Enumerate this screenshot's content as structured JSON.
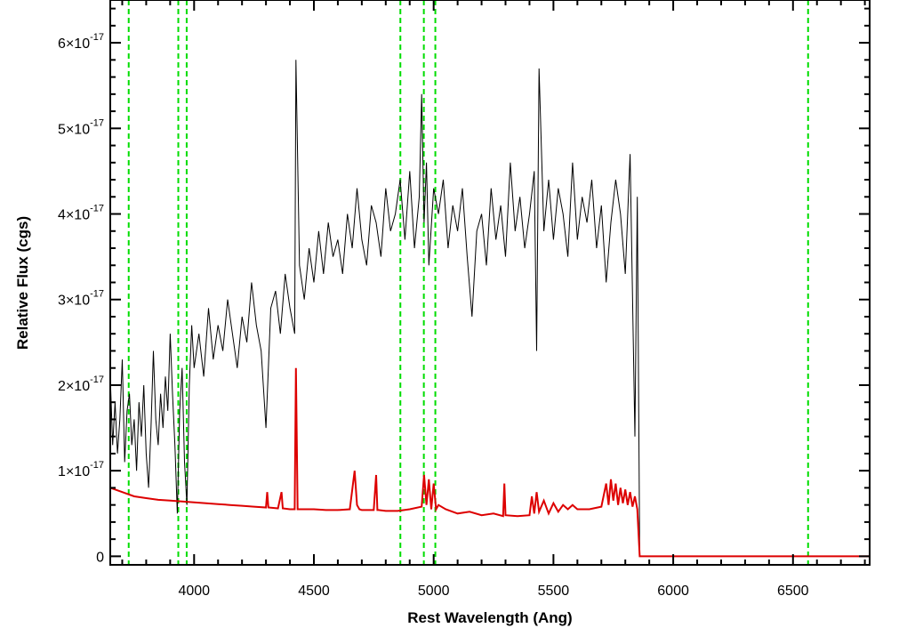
{
  "chart_data": {
    "type": "line",
    "xlabel": "Rest Wavelength (Ang)",
    "ylabel": "Relative Flux (cgs)",
    "xlim": [
      3650,
      6820
    ],
    "ylim": [
      -1e-18,
      6.5e-17
    ],
    "x_ticks": [
      {
        "value": 4000,
        "label": "4000"
      },
      {
        "value": 4500,
        "label": "4500"
      },
      {
        "value": 5000,
        "label": "5000"
      },
      {
        "value": 5500,
        "label": "5500"
      },
      {
        "value": 6000,
        "label": "6000"
      },
      {
        "value": 6500,
        "label": "6500"
      }
    ],
    "y_ticks": [
      {
        "value": 0,
        "label": "0",
        "mantissa": "",
        "exponent": ""
      },
      {
        "value": 1e-17,
        "label": "1×10-17",
        "mantissa": "1×10",
        "exponent": "-17"
      },
      {
        "value": 2e-17,
        "label": "2×10-17",
        "mantissa": "2×10",
        "exponent": "-17"
      },
      {
        "value": 3e-17,
        "label": "3×10-17",
        "mantissa": "3×10",
        "exponent": "-17"
      },
      {
        "value": 4e-17,
        "label": "4×10-17",
        "mantissa": "4×10",
        "exponent": "-17"
      },
      {
        "value": 5e-17,
        "label": "5×10-17",
        "mantissa": "5×10",
        "exponent": "-17"
      },
      {
        "value": 6e-17,
        "label": "6×10-17",
        "mantissa": "6×10",
        "exponent": "-17"
      }
    ],
    "reference_lines_x": [
      3727,
      3934,
      3969,
      4861,
      4959,
      5007,
      6563
    ],
    "reference_line_color": "#00dd00",
    "series": [
      {
        "color": "#000000",
        "x": [
          3650,
          3660,
          3670,
          3680,
          3690,
          3700,
          3710,
          3720,
          3730,
          3740,
          3750,
          3760,
          3770,
          3780,
          3790,
          3800,
          3810,
          3820,
          3830,
          3840,
          3850,
          3860,
          3870,
          3880,
          3890,
          3900,
          3910,
          3920,
          3930,
          3940,
          3950,
          3960,
          3970,
          3980,
          3990,
          4000,
          4020,
          4040,
          4060,
          4080,
          4100,
          4120,
          4140,
          4160,
          4180,
          4200,
          4220,
          4240,
          4260,
          4280,
          4300,
          4320,
          4340,
          4360,
          4380,
          4400,
          4420,
          4425,
          4440,
          4460,
          4480,
          4500,
          4520,
          4540,
          4560,
          4580,
          4600,
          4620,
          4640,
          4660,
          4680,
          4700,
          4720,
          4740,
          4760,
          4780,
          4800,
          4820,
          4840,
          4860,
          4880,
          4900,
          4920,
          4940,
          4950,
          4960,
          4970,
          4980,
          5000,
          5020,
          5040,
          5060,
          5080,
          5100,
          5120,
          5140,
          5160,
          5180,
          5200,
          5220,
          5240,
          5260,
          5280,
          5300,
          5320,
          5340,
          5360,
          5380,
          5400,
          5420,
          5430,
          5440,
          5460,
          5480,
          5500,
          5520,
          5540,
          5560,
          5580,
          5600,
          5620,
          5640,
          5660,
          5680,
          5700,
          5720,
          5740,
          5760,
          5780,
          5800,
          5820,
          5840,
          5850,
          5860
        ],
        "values": [
          2.1e-17,
          1.3e-17,
          1.8e-17,
          1.2e-17,
          1.6e-17,
          2.3e-17,
          1.1e-17,
          1.7e-17,
          1.9e-17,
          1.3e-17,
          1.6e-17,
          1e-17,
          1.8e-17,
          1.4e-17,
          2e-17,
          1.2e-17,
          8e-18,
          1.5e-17,
          2.4e-17,
          1.6e-17,
          1.3e-17,
          1.9e-17,
          1.5e-17,
          2.1e-17,
          1.7e-17,
          2.6e-17,
          1.9e-17,
          1.3e-17,
          5e-18,
          1.7e-17,
          2.2e-17,
          1.1e-17,
          6e-18,
          2e-17,
          2.7e-17,
          2.2e-17,
          2.6e-17,
          2.1e-17,
          2.9e-17,
          2.3e-17,
          2.7e-17,
          2.4e-17,
          3e-17,
          2.6e-17,
          2.2e-17,
          2.8e-17,
          2.5e-17,
          3.2e-17,
          2.7e-17,
          2.4e-17,
          1.5e-17,
          2.9e-17,
          3.1e-17,
          2.6e-17,
          3.3e-17,
          2.9e-17,
          2.6e-17,
          5.8e-17,
          3.4e-17,
          3e-17,
          3.6e-17,
          3.2e-17,
          3.8e-17,
          3.3e-17,
          3.9e-17,
          3.5e-17,
          3.7e-17,
          3.3e-17,
          4e-17,
          3.6e-17,
          4.3e-17,
          3.7e-17,
          3.4e-17,
          4.1e-17,
          3.9e-17,
          3.5e-17,
          4.3e-17,
          3.8e-17,
          4e-17,
          4.4e-17,
          3.7e-17,
          4.5e-17,
          3.6e-17,
          4.2e-17,
          5.4e-17,
          3.9e-17,
          4.6e-17,
          3.4e-17,
          4.3e-17,
          4e-17,
          4.4e-17,
          3.6e-17,
          4.1e-17,
          3.8e-17,
          4.3e-17,
          3.5e-17,
          2.8e-17,
          3.8e-17,
          4e-17,
          3.4e-17,
          4.3e-17,
          3.7e-17,
          4.1e-17,
          3.5e-17,
          4.6e-17,
          3.8e-17,
          4.2e-17,
          3.6e-17,
          4e-17,
          4.5e-17,
          2.4e-17,
          5.7e-17,
          3.8e-17,
          4.4e-17,
          3.7e-17,
          4.3e-17,
          4e-17,
          3.5e-17,
          4.6e-17,
          3.7e-17,
          4.2e-17,
          3.9e-17,
          4.4e-17,
          3.6e-17,
          4.1e-17,
          3.2e-17,
          3.9e-17,
          4.4e-17,
          4e-17,
          3.3e-17,
          4.7e-17,
          1.4e-17,
          4.2e-17,
          0.0
        ]
      },
      {
        "color": "#dd0000",
        "x": [
          3650,
          3700,
          3750,
          3800,
          3850,
          3900,
          3950,
          4000,
          4050,
          4100,
          4150,
          4200,
          4250,
          4300,
          4305,
          4310,
          4350,
          4365,
          4370,
          4400,
          4420,
          4425,
          4432,
          4440,
          4500,
          4550,
          4600,
          4650,
          4670,
          4680,
          4690,
          4700,
          4750,
          4760,
          4765,
          4770,
          4800,
          4850,
          4900,
          4950,
          4960,
          4970,
          4980,
          4990,
          5000,
          5010,
          5020,
          5050,
          5100,
          5150,
          5200,
          5250,
          5290,
          5295,
          5300,
          5350,
          5400,
          5410,
          5420,
          5430,
          5440,
          5460,
          5480,
          5500,
          5520,
          5540,
          5560,
          5580,
          5600,
          5650,
          5700,
          5720,
          5730,
          5740,
          5750,
          5760,
          5770,
          5780,
          5790,
          5800,
          5810,
          5820,
          5830,
          5840,
          5850,
          5860,
          5870,
          6000,
          6200,
          6400,
          6600,
          6820
        ],
        "values": [
          8e-18,
          7.5e-18,
          7e-18,
          6.8e-18,
          6.6e-18,
          6.5e-18,
          6.4e-18,
          6.3e-18,
          6.2e-18,
          6.1e-18,
          6e-18,
          5.9e-18,
          5.8e-18,
          5.7e-18,
          7.5e-18,
          5.7e-18,
          5.6e-18,
          7.5e-18,
          5.6e-18,
          5.5e-18,
          5.5e-18,
          2.2e-17,
          5.5e-18,
          5.5e-18,
          5.5e-18,
          5.4e-18,
          5.4e-18,
          5.5e-18,
          1e-17,
          6e-18,
          5.5e-18,
          5.4e-18,
          5.4e-18,
          9.5e-18,
          5.4e-18,
          5.4e-18,
          5.3e-18,
          5.3e-18,
          5.5e-18,
          5.8e-18,
          9.5e-18,
          6e-18,
          9e-18,
          5.5e-18,
          8.5e-18,
          5.5e-18,
          6e-18,
          5.5e-18,
          5e-18,
          5.2e-18,
          4.8e-18,
          5e-18,
          4.7e-18,
          8.5e-18,
          4.8e-18,
          4.7e-18,
          4.8e-18,
          7e-18,
          5e-18,
          7.5e-18,
          5.2e-18,
          6.5e-18,
          5e-18,
          6.2e-18,
          5.2e-18,
          6e-18,
          5.5e-18,
          6e-18,
          5.5e-18,
          5.5e-18,
          5.8e-18,
          8.5e-18,
          6e-18,
          9e-18,
          6.5e-18,
          8.5e-18,
          6e-18,
          8e-18,
          6.2e-18,
          7.8e-18,
          6e-18,
          7.5e-18,
          5.8e-18,
          7e-18,
          5.5e-18,
          0.0,
          0.0,
          0.0,
          0.0,
          0.0,
          0.0,
          0.0
        ]
      }
    ]
  }
}
